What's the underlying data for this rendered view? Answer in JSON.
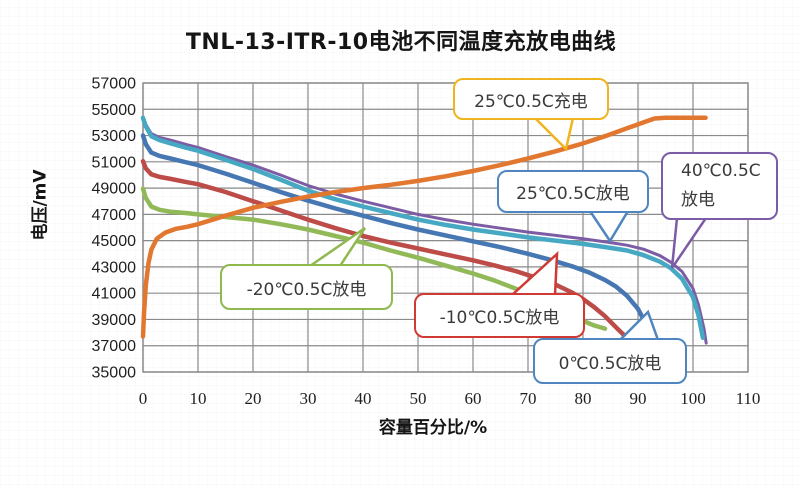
{
  "title": "TNL-13-ITR-10电池不同温度充放电曲线",
  "chart_data": {
    "type": "line",
    "title": "TNL-13-ITR-10电池不同温度充放电曲线",
    "xlabel": "容量百分比/%",
    "ylabel": "电压/mV",
    "xlim": [
      0,
      110
    ],
    "ylim": [
      35000,
      57000
    ],
    "x_ticks": [
      0,
      10,
      20,
      30,
      40,
      50,
      60,
      70,
      80,
      90,
      100,
      110
    ],
    "y_ticks": [
      35000,
      37000,
      39000,
      41000,
      43000,
      45000,
      47000,
      49000,
      51000,
      53000,
      55000,
      57000
    ],
    "grid": true,
    "grid_color": "#8a8a8a",
    "legend_position": "none",
    "series": [
      {
        "key": "discharge-40c",
        "name": "40℃0.5C放电",
        "color": "#7c5ca4",
        "width": 3,
        "points": [
          [
            0,
            54400
          ],
          [
            0.5,
            53850
          ],
          [
            1.5,
            53150
          ],
          [
            3,
            52850
          ],
          [
            5,
            52650
          ],
          [
            8,
            52300
          ],
          [
            10,
            52100
          ],
          [
            15,
            51400
          ],
          [
            20,
            50750
          ],
          [
            25,
            50000
          ],
          [
            30,
            49200
          ],
          [
            35,
            48550
          ],
          [
            40,
            48000
          ],
          [
            45,
            47500
          ],
          [
            50,
            47000
          ],
          [
            55,
            46600
          ],
          [
            60,
            46250
          ],
          [
            65,
            45950
          ],
          [
            70,
            45650
          ],
          [
            75,
            45400
          ],
          [
            80,
            45150
          ],
          [
            85,
            44850
          ],
          [
            88,
            44650
          ],
          [
            91,
            44350
          ],
          [
            94,
            43850
          ],
          [
            96,
            43350
          ],
          [
            98,
            42650
          ],
          [
            100,
            41350
          ],
          [
            101,
            40100
          ],
          [
            102,
            38300
          ],
          [
            102.4,
            37200
          ]
        ]
      },
      {
        "key": "discharge-25c",
        "name": "25℃0.5C放电",
        "color": "#47a8c4",
        "width": 4.5,
        "points": [
          [
            0,
            54340
          ],
          [
            0.5,
            53700
          ],
          [
            1.5,
            52950
          ],
          [
            3,
            52650
          ],
          [
            5,
            52400
          ],
          [
            8,
            52050
          ],
          [
            10,
            51850
          ],
          [
            15,
            51150
          ],
          [
            20,
            50450
          ],
          [
            25,
            49650
          ],
          [
            30,
            48800
          ],
          [
            35,
            48150
          ],
          [
            40,
            47600
          ],
          [
            45,
            47100
          ],
          [
            50,
            46600
          ],
          [
            55,
            46200
          ],
          [
            60,
            45850
          ],
          [
            65,
            45550
          ],
          [
            70,
            45250
          ],
          [
            75,
            45000
          ],
          [
            80,
            44750
          ],
          [
            85,
            44450
          ],
          [
            88,
            44250
          ],
          [
            91,
            43900
          ],
          [
            94,
            43400
          ],
          [
            96,
            42900
          ],
          [
            98,
            42100
          ],
          [
            100,
            40700
          ],
          [
            101,
            39300
          ],
          [
            101.8,
            37600
          ]
        ]
      },
      {
        "key": "discharge-0c",
        "name": "0℃0.5C放电",
        "color": "#4677b2",
        "width": 4.5,
        "points": [
          [
            0,
            53000
          ],
          [
            0.5,
            52350
          ],
          [
            1.5,
            51700
          ],
          [
            3,
            51450
          ],
          [
            5,
            51250
          ],
          [
            8,
            50950
          ],
          [
            10,
            50750
          ],
          [
            15,
            50100
          ],
          [
            20,
            49400
          ],
          [
            25,
            48700
          ],
          [
            30,
            48050
          ],
          [
            35,
            47450
          ],
          [
            40,
            46900
          ],
          [
            45,
            46350
          ],
          [
            50,
            45850
          ],
          [
            55,
            45400
          ],
          [
            60,
            44950
          ],
          [
            65,
            44500
          ],
          [
            70,
            44000
          ],
          [
            74,
            43550
          ],
          [
            78,
            43050
          ],
          [
            81,
            42600
          ],
          [
            84,
            42000
          ],
          [
            86,
            41500
          ],
          [
            88,
            40800
          ],
          [
            90,
            39800
          ],
          [
            91.5,
            38600
          ],
          [
            92.4,
            37500
          ]
        ]
      },
      {
        "key": "discharge-neg10c",
        "name": "-10℃0.5C放电",
        "color": "#bd4b47",
        "width": 4.5,
        "points": [
          [
            0,
            51050
          ],
          [
            0.5,
            50500
          ],
          [
            1.5,
            50050
          ],
          [
            3,
            49850
          ],
          [
            5,
            49700
          ],
          [
            8,
            49450
          ],
          [
            10,
            49300
          ],
          [
            15,
            48700
          ],
          [
            20,
            48000
          ],
          [
            25,
            47300
          ],
          [
            30,
            46600
          ],
          [
            35,
            45950
          ],
          [
            40,
            45350
          ],
          [
            45,
            44850
          ],
          [
            50,
            44400
          ],
          [
            55,
            43950
          ],
          [
            60,
            43500
          ],
          [
            64,
            43100
          ],
          [
            68,
            42650
          ],
          [
            72,
            42100
          ],
          [
            75,
            41650
          ],
          [
            78,
            41050
          ],
          [
            80,
            40550
          ],
          [
            82,
            39950
          ],
          [
            84,
            39250
          ],
          [
            86,
            38400
          ],
          [
            87.7,
            37700
          ]
        ]
      },
      {
        "key": "discharge-neg20c",
        "name": "-20℃0.5C放电",
        "color": "#92b957",
        "width": 4.5,
        "points": [
          [
            0,
            48950
          ],
          [
            0.5,
            48250
          ],
          [
            1.5,
            47600
          ],
          [
            3,
            47350
          ],
          [
            5,
            47200
          ],
          [
            8,
            47100
          ],
          [
            10,
            47000
          ],
          [
            15,
            46800
          ],
          [
            20,
            46600
          ],
          [
            25,
            46250
          ],
          [
            30,
            45850
          ],
          [
            35,
            45350
          ],
          [
            40,
            44850
          ],
          [
            45,
            44250
          ],
          [
            50,
            43700
          ],
          [
            55,
            43100
          ],
          [
            60,
            42500
          ],
          [
            64,
            41950
          ],
          [
            68,
            41300
          ],
          [
            72,
            40550
          ],
          [
            75,
            39950
          ],
          [
            78,
            39300
          ],
          [
            80,
            38900
          ],
          [
            82,
            38550
          ],
          [
            84,
            38300
          ]
        ]
      },
      {
        "key": "charge-25c",
        "name": "25℃0.5C充电",
        "color": "#e2772f",
        "width": 4.5,
        "points": [
          [
            0,
            37700
          ],
          [
            0.2,
            39600
          ],
          [
            0.5,
            41600
          ],
          [
            1,
            43300
          ],
          [
            1.5,
            44300
          ],
          [
            2.5,
            45150
          ],
          [
            4,
            45600
          ],
          [
            6,
            45900
          ],
          [
            8,
            46050
          ],
          [
            10,
            46250
          ],
          [
            15,
            46900
          ],
          [
            20,
            47500
          ],
          [
            25,
            47950
          ],
          [
            30,
            48350
          ],
          [
            35,
            48700
          ],
          [
            40,
            49000
          ],
          [
            45,
            49250
          ],
          [
            50,
            49550
          ],
          [
            55,
            49900
          ],
          [
            60,
            50300
          ],
          [
            65,
            50750
          ],
          [
            70,
            51250
          ],
          [
            75,
            51800
          ],
          [
            80,
            52400
          ],
          [
            84,
            52950
          ],
          [
            88,
            53550
          ],
          [
            91,
            54000
          ],
          [
            93,
            54300
          ],
          [
            95,
            54350
          ],
          [
            102.3,
            54350
          ]
        ]
      }
    ],
    "annotations": [
      {
        "label": "25℃0.5C充电",
        "color": "#f0b41f"
      },
      {
        "label": "25℃0.5C放电",
        "color": "#4f86c0"
      },
      {
        "label": "40℃0.5C放电",
        "color": "#7c5ca4"
      },
      {
        "label": "-20℃0.5C放电",
        "color": "#8fb84e"
      },
      {
        "label": "-10℃0.5C放电",
        "color": "#cf3a34"
      },
      {
        "label": "0℃0.5C放电",
        "color": "#4f86c0"
      }
    ]
  }
}
